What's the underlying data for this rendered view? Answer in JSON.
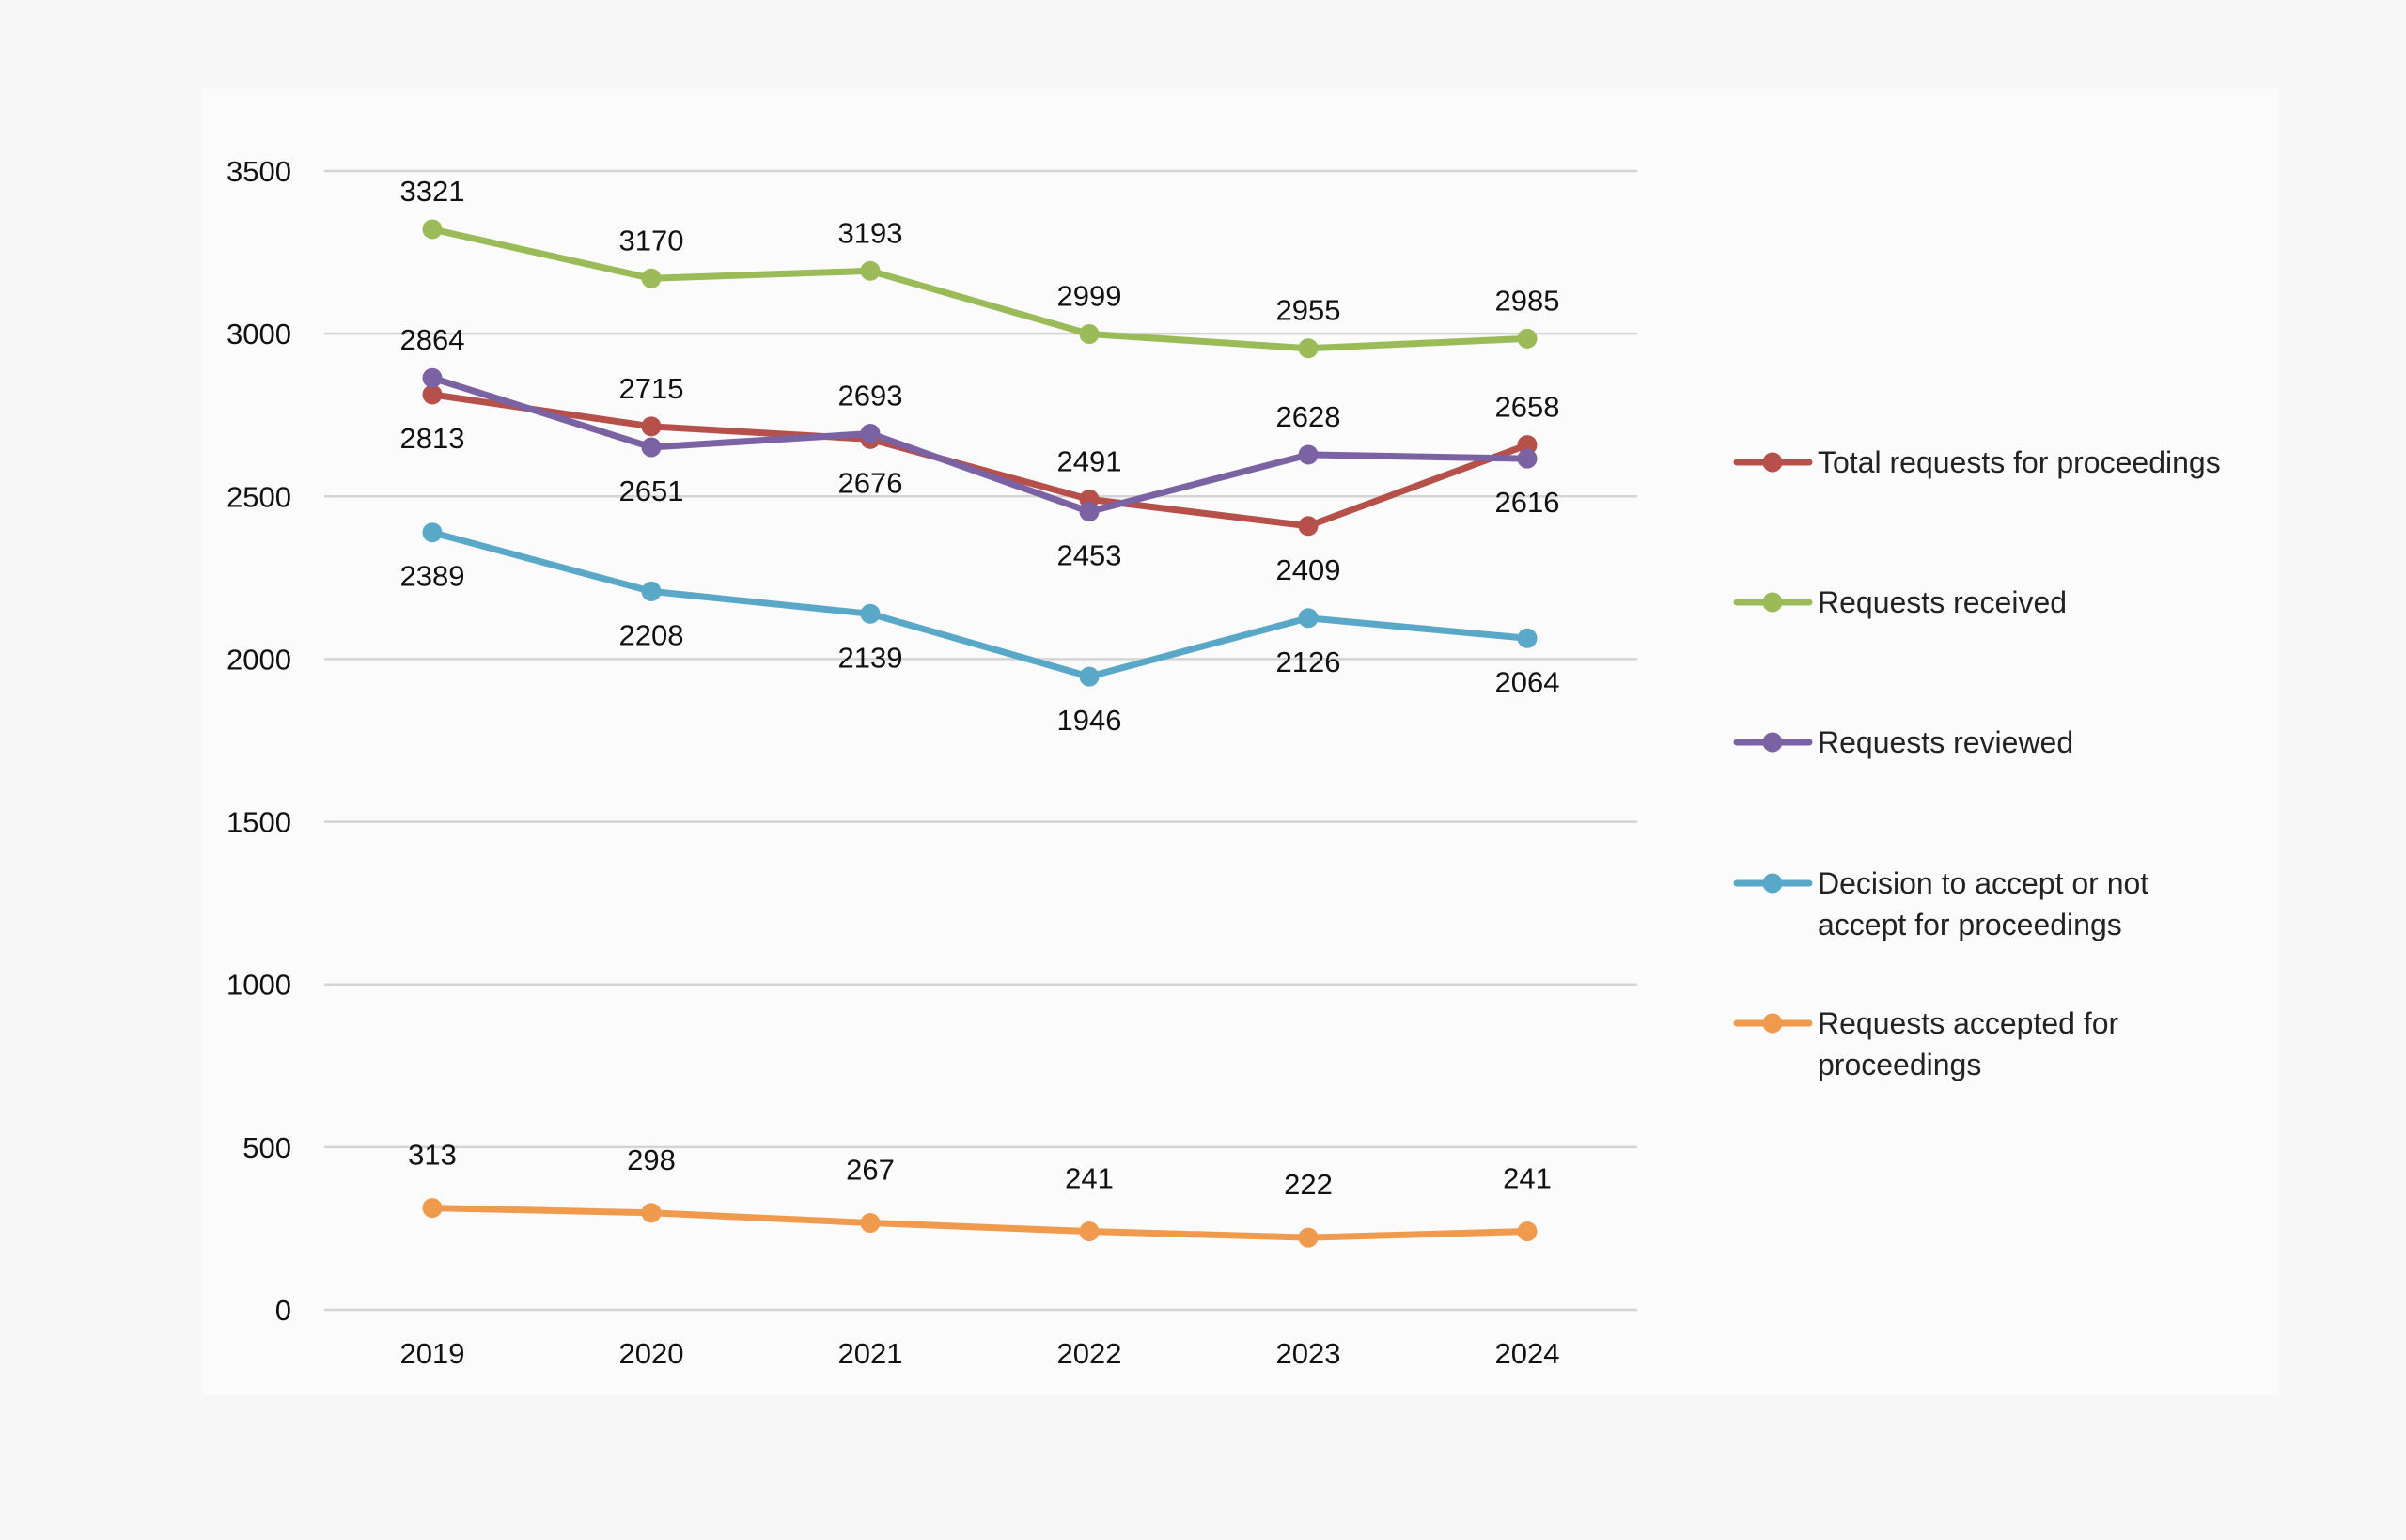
{
  "chart_data": {
    "type": "line",
    "title": "",
    "xlabel": "",
    "ylabel": "",
    "categories": [
      "2019",
      "2020",
      "2021",
      "2022",
      "2023",
      "2024"
    ],
    "ylim": [
      0,
      3500
    ],
    "yticks": [
      0,
      500,
      1000,
      1500,
      2000,
      2500,
      3000,
      3500
    ],
    "grid": "horizontal",
    "legend": "right",
    "series": [
      {
        "name": "Total requests for proceedings",
        "color": "#b5504a",
        "values": [
          2813,
          2715,
          2676,
          2491,
          2409,
          2658
        ]
      },
      {
        "name": "Requests received",
        "color": "#9bbb59",
        "values": [
          3321,
          3170,
          3193,
          2999,
          2955,
          2985
        ]
      },
      {
        "name": "Requests reviewed",
        "color": "#7b62a3",
        "values": [
          2864,
          2651,
          2693,
          2453,
          2628,
          2616
        ]
      },
      {
        "name": "Decision to accept or not accept for proceedings",
        "color": "#5aa8c8",
        "values": [
          2389,
          2208,
          2139,
          1946,
          2126,
          2064
        ]
      },
      {
        "name": "Requests accepted for proceedings",
        "color": "#f09a4e",
        "values": [
          313,
          298,
          267,
          241,
          222,
          241
        ]
      }
    ]
  }
}
